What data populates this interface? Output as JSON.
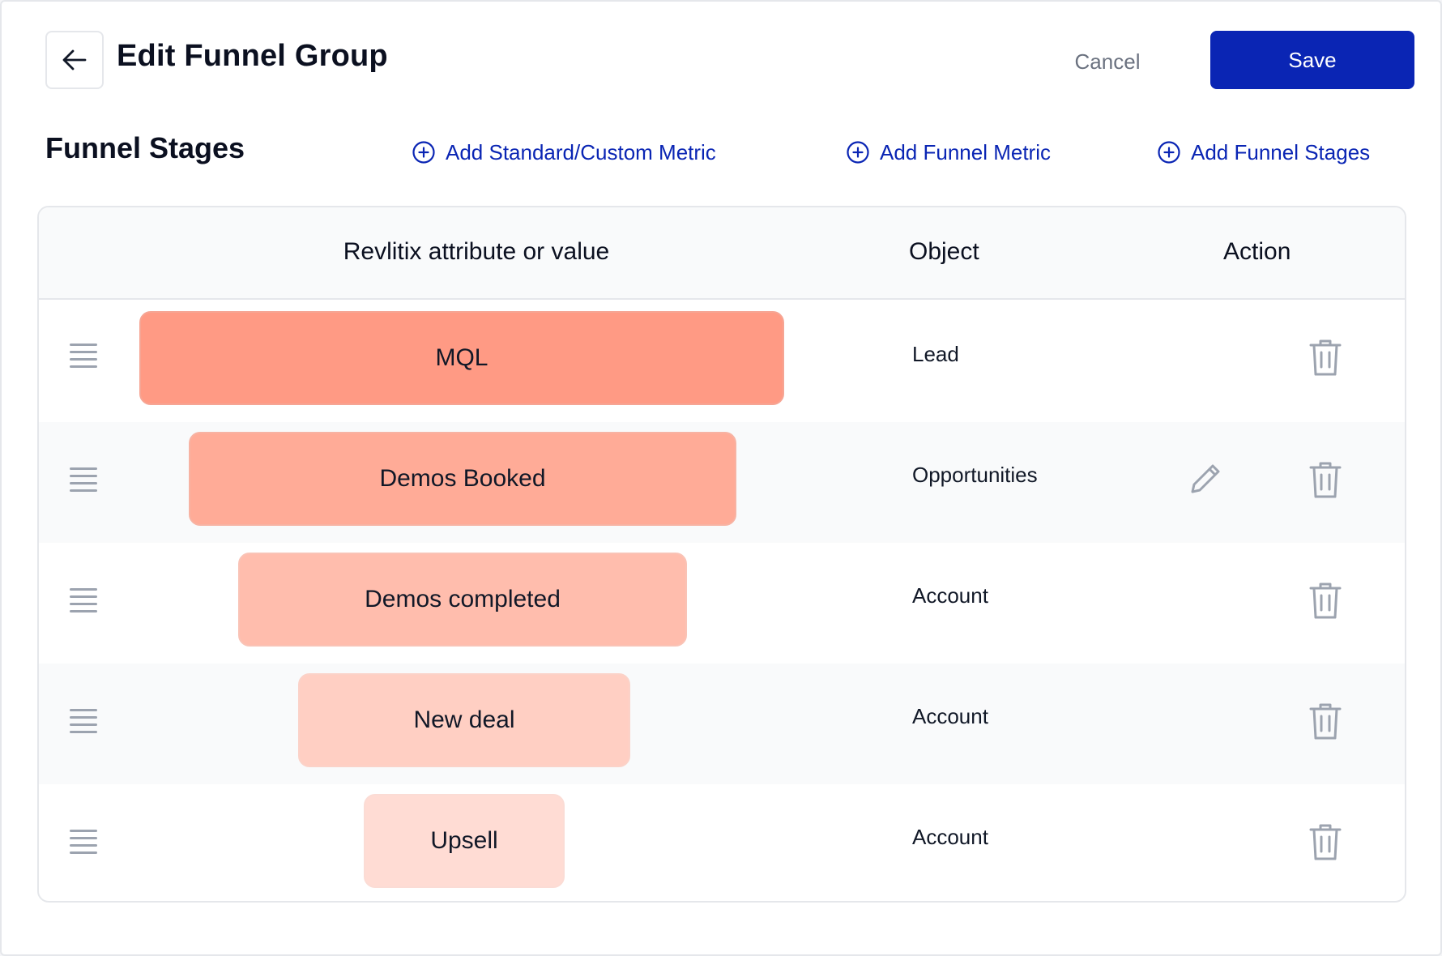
{
  "header": {
    "title": "Edit Funnel Group",
    "cancel_label": "Cancel",
    "save_label": "Save"
  },
  "section": {
    "title": "Funnel Stages",
    "actions": [
      {
        "label": "Add Standard/Custom Metric",
        "icon": "plus-circle-icon"
      },
      {
        "label": "Add Funnel Metric",
        "icon": "plus-circle-icon"
      },
      {
        "label": "Add Funnel Stages",
        "icon": "plus-circle-icon"
      }
    ]
  },
  "table": {
    "columns": [
      "Revlitix attribute or value",
      "Object",
      "Action"
    ],
    "rows": [
      {
        "stage": "MQL",
        "object": "Lead",
        "editable": false,
        "color": "#ff9a84"
      },
      {
        "stage": "Demos Booked",
        "object": "Opportunities",
        "editable": true,
        "color": "#ffab97"
      },
      {
        "stage": "Demos completed",
        "object": "Account",
        "editable": false,
        "color": "#ffbdad"
      },
      {
        "stage": "New deal",
        "object": "Account",
        "editable": false,
        "color": "#ffcfc3"
      },
      {
        "stage": "Upsell",
        "object": "Account",
        "editable": false,
        "color": "#ffdcd4"
      }
    ]
  },
  "colors": {
    "primary": "#0a25b4",
    "icon_gray": "#9ca3af",
    "border": "#e5e7eb"
  }
}
